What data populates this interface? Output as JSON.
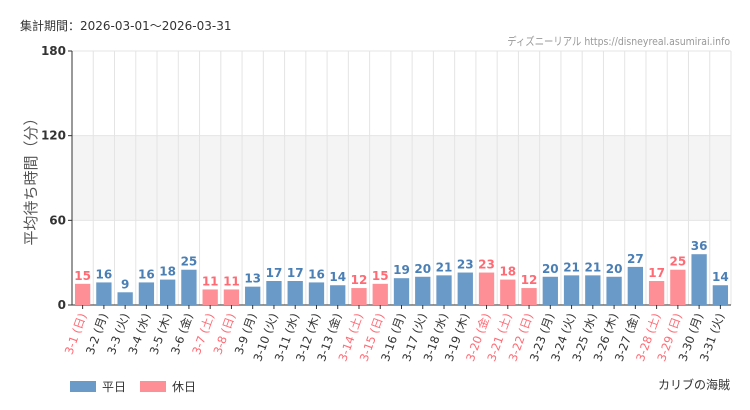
{
  "header": {
    "period": "集計期間：2026-03-01～2026-03-31",
    "credit": "ディズニーリアル https://disneyreal.asumirai.info"
  },
  "park": "カリブの海賊",
  "legend": {
    "weekday": "平日",
    "holiday": "休日"
  },
  "colors": {
    "weekday": "#6a9ac7",
    "holiday": "#ff8f96",
    "weekday_label": "#4a7fb5",
    "holiday_label": "#ff6b75",
    "band": "#f4f4f4"
  },
  "chart_data": {
    "type": "bar",
    "ylabel": "平均待ち時間（分）",
    "ylim": [
      0,
      180
    ],
    "yticks": [
      0,
      60,
      120,
      180
    ],
    "grid": true,
    "categories": [
      "3-1 (日)",
      "3-2 (月)",
      "3-3 (火)",
      "3-4 (水)",
      "3-5 (木)",
      "3-6 (金)",
      "3-7 (土)",
      "3-8 (日)",
      "3-9 (月)",
      "3-10 (火)",
      "3-11 (水)",
      "3-12 (木)",
      "3-13 (金)",
      "3-14 (土)",
      "3-15 (日)",
      "3-16 (月)",
      "3-17 (火)",
      "3-18 (水)",
      "3-19 (木)",
      "3-20 (金)",
      "3-21 (土)",
      "3-22 (日)",
      "3-23 (月)",
      "3-24 (火)",
      "3-25 (水)",
      "3-26 (木)",
      "3-27 (金)",
      "3-28 (土)",
      "3-29 (日)",
      "3-30 (月)",
      "3-31 (火)"
    ],
    "values": [
      15,
      16,
      9,
      16,
      18,
      25,
      11,
      11,
      13,
      17,
      17,
      16,
      14,
      12,
      15,
      19,
      20,
      21,
      23,
      23,
      18,
      12,
      20,
      21,
      21,
      20,
      27,
      17,
      25,
      36,
      14
    ],
    "holiday": [
      true,
      false,
      false,
      false,
      false,
      false,
      true,
      true,
      false,
      false,
      false,
      false,
      false,
      true,
      true,
      false,
      false,
      false,
      false,
      true,
      true,
      true,
      false,
      false,
      false,
      false,
      false,
      true,
      true,
      false,
      false
    ]
  }
}
